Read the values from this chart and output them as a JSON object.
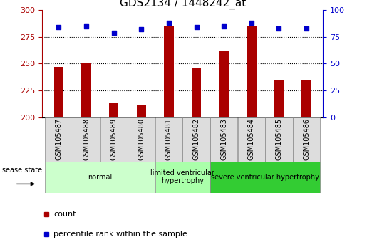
{
  "title": "GDS2134 / 1448242_at",
  "samples": [
    "GSM105487",
    "GSM105488",
    "GSM105489",
    "GSM105480",
    "GSM105481",
    "GSM105482",
    "GSM105483",
    "GSM105484",
    "GSM105485",
    "GSM105486"
  ],
  "bar_values": [
    247,
    250,
    213,
    212,
    285,
    246,
    262,
    285,
    235,
    234
  ],
  "percentile_values": [
    84,
    85,
    79,
    82,
    88,
    84,
    85,
    88,
    83,
    83
  ],
  "ylim_left": [
    200,
    300
  ],
  "ylim_right": [
    0,
    100
  ],
  "yticks_left": [
    200,
    225,
    250,
    275,
    300
  ],
  "yticks_right": [
    0,
    25,
    50,
    75,
    100
  ],
  "bar_color": "#AA0000",
  "dot_color": "#0000CC",
  "groups": [
    {
      "label": "normal",
      "start": 0,
      "end": 3,
      "color": "#CCFFCC"
    },
    {
      "label": "limited ventricular\nhypertrophy",
      "start": 4,
      "end": 5,
      "color": "#AAFFAA"
    },
    {
      "label": "severe ventricular hypertrophy",
      "start": 6,
      "end": 9,
      "color": "#33CC33"
    }
  ],
  "disease_state_label": "disease state",
  "legend_count_label": "count",
  "legend_percentile_label": "percentile rank within the sample",
  "title_fontsize": 11,
  "tick_label_fontsize": 8,
  "bar_width": 0.35
}
